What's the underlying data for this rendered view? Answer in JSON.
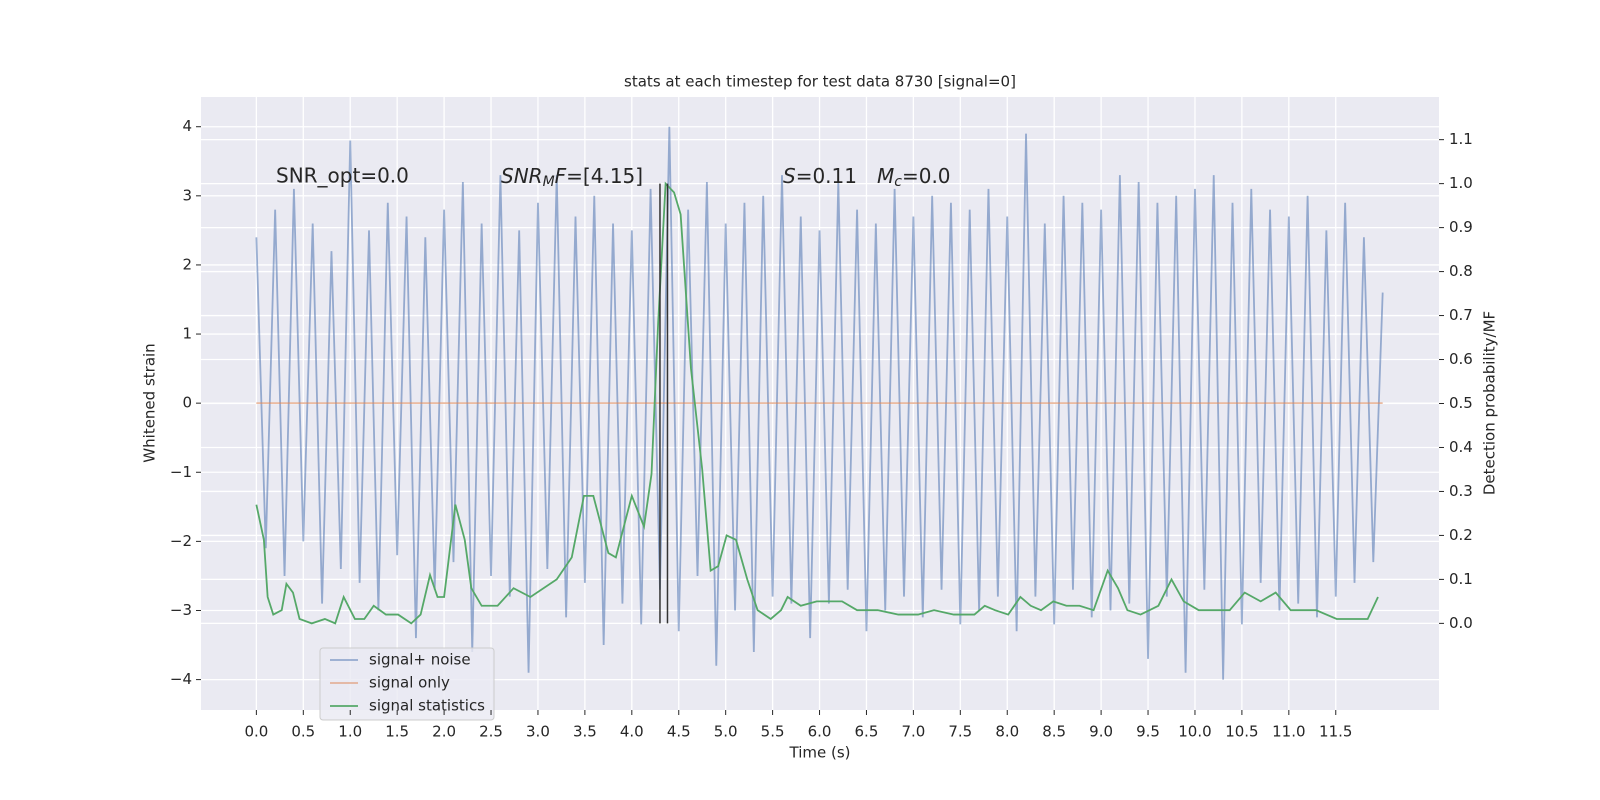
{
  "chart_data": {
    "type": "line",
    "title": "stats at each timestep for test data 8730 [signal=0]",
    "xlabel": "Time (s)",
    "ylabel": "Whitened strain",
    "y2label": "Detection probability/MF",
    "xlim": [
      -0.59,
      12.6
    ],
    "ylim": [
      -4.44,
      4.43
    ],
    "y2lim": [
      -0.197,
      1.197
    ],
    "xticks": [
      {
        "value": 0,
        "label": "0.0"
      },
      0.5,
      {
        "value": 1,
        "label": "1.0"
      },
      1.5,
      {
        "value": 2,
        "label": "2.0"
      },
      2.5,
      {
        "value": 3,
        "label": "3.0"
      },
      3.5,
      {
        "value": 4,
        "label": "4.0"
      },
      4.5,
      {
        "value": 5,
        "label": "5.0"
      },
      5.5,
      {
        "value": 6,
        "label": "6.0"
      },
      6.5,
      {
        "value": 7,
        "label": "7.0"
      },
      7.5,
      {
        "value": 8,
        "label": "8.0"
      },
      8.5,
      {
        "value": 9,
        "label": "9.0"
      },
      9.5,
      {
        "value": 10,
        "label": "10.0"
      },
      10.5,
      {
        "value": 11,
        "label": "11.0"
      },
      11.5
    ],
    "yticks": [
      {
        "value": -4,
        "label": "−4"
      },
      {
        "value": -3,
        "label": "−3"
      },
      {
        "value": -2,
        "label": "−2"
      },
      {
        "value": -1,
        "label": "−1"
      },
      0,
      1,
      2,
      3,
      4
    ],
    "y2ticks": [
      {
        "value": 0,
        "label": "0.0"
      },
      0.1,
      0.2,
      0.3,
      0.4,
      0.5,
      0.6,
      0.7,
      0.8,
      0.9,
      {
        "value": 1,
        "label": "1.0"
      },
      1.1
    ],
    "grid": true,
    "series": [
      {
        "name": "signal+ noise",
        "color": "#4c72b0",
        "axis": "y",
        "x": [
          0,
          0.1,
          0.2,
          0.3,
          0.4,
          0.5,
          0.6,
          0.7,
          0.8,
          0.9,
          1,
          1.1,
          1.2,
          1.3,
          1.4,
          1.5,
          1.6,
          1.7,
          1.8,
          1.9,
          2,
          2.1,
          2.2,
          2.3,
          2.4,
          2.5,
          2.6,
          2.7,
          2.8,
          2.9,
          3,
          3.1,
          3.2,
          3.3,
          3.4,
          3.5,
          3.6,
          3.7,
          3.8,
          3.9,
          4,
          4.1,
          4.2,
          4.3,
          4.4,
          4.5,
          4.6,
          4.7,
          4.8,
          4.9,
          5,
          5.1,
          5.2,
          5.3,
          5.4,
          5.5,
          5.6,
          5.7,
          5.8,
          5.9,
          6,
          6.1,
          6.2,
          6.3,
          6.4,
          6.5,
          6.6,
          6.7,
          6.8,
          6.9,
          7,
          7.1,
          7.2,
          7.3,
          7.4,
          7.5,
          7.6,
          7.7,
          7.8,
          7.9,
          8,
          8.1,
          8.2,
          8.3,
          8.4,
          8.5,
          8.6,
          8.7,
          8.8,
          8.9,
          9,
          9.1,
          9.2,
          9.3,
          9.4,
          9.5,
          9.6,
          9.7,
          9.8,
          9.9,
          10,
          10.1,
          10.2,
          10.3,
          10.4,
          10.5,
          10.6,
          10.7,
          10.8,
          10.9,
          11,
          11.1,
          11.2,
          11.3,
          11.4,
          11.5,
          11.6,
          11.7,
          11.8,
          11.9,
          12
        ],
        "values": [
          2.4,
          -2.1,
          2.8,
          -2.5,
          3.1,
          -2.0,
          2.6,
          -2.9,
          2.2,
          -2.4,
          3.8,
          -2.6,
          2.5,
          -3.0,
          2.9,
          -2.2,
          2.7,
          -3.4,
          2.4,
          -2.7,
          2.8,
          -2.3,
          3.2,
          -3.6,
          2.6,
          -2.5,
          3.3,
          -2.8,
          2.5,
          -3.9,
          2.9,
          -2.4,
          3.3,
          -3.1,
          2.7,
          -2.6,
          3.0,
          -3.5,
          2.6,
          -2.9,
          2.5,
          -3.2,
          3.1,
          -2.7,
          4.0,
          -3.3,
          2.8,
          -2.5,
          3.2,
          -3.8,
          2.6,
          -3.0,
          2.9,
          -3.6,
          3.0,
          -2.8,
          3.3,
          -2.9,
          2.7,
          -3.4,
          2.5,
          -2.9,
          3.2,
          -2.7,
          2.8,
          -3.3,
          2.6,
          -3.0,
          3.1,
          -2.8,
          2.7,
          -3.1,
          3.0,
          -2.7,
          2.9,
          -3.2,
          2.8,
          -3.0,
          3.1,
          -2.8,
          2.7,
          -3.3,
          3.9,
          -2.8,
          2.6,
          -3.2,
          3.0,
          -2.7,
          2.9,
          -3.1,
          2.8,
          -3.0,
          3.3,
          -2.9,
          3.2,
          -3.7,
          2.9,
          -2.8,
          3.0,
          -3.9,
          3.1,
          -2.7,
          3.3,
          -4.0,
          2.9,
          -3.2,
          3.1,
          -2.6,
          2.8,
          -3.0,
          2.7,
          -2.9,
          3.0,
          -3.1,
          2.5,
          -2.8,
          2.9,
          -2.6,
          2.4,
          -2.3,
          1.6
        ]
      },
      {
        "name": "signal only",
        "color": "#dd8452",
        "axis": "y",
        "x": [
          0,
          12
        ],
        "values": [
          0,
          0
        ]
      },
      {
        "name": "signal statistics",
        "color": "#55a868",
        "axis": "y2",
        "x": [
          0,
          0.08,
          0.12,
          0.18,
          0.27,
          0.32,
          0.39,
          0.46,
          0.59,
          0.73,
          0.84,
          0.93,
          1.05,
          1.15,
          1.25,
          1.38,
          1.51,
          1.65,
          1.75,
          1.85,
          1.93,
          2.0,
          2.12,
          2.22,
          2.29,
          2.4,
          2.57,
          2.74,
          2.92,
          3.2,
          3.36,
          3.49,
          3.59,
          3.75,
          3.83,
          4.0,
          4.13,
          4.21,
          4.28,
          4.36,
          4.45,
          4.52,
          4.63,
          4.75,
          4.84,
          4.92,
          5.01,
          5.11,
          5.23,
          5.34,
          5.48,
          5.59,
          5.66,
          5.8,
          5.97,
          6.13,
          6.24,
          6.4,
          6.62,
          6.84,
          7.05,
          7.22,
          7.43,
          7.65,
          7.76,
          7.87,
          8.01,
          8.14,
          8.25,
          8.36,
          8.49,
          8.63,
          8.77,
          8.92,
          9.07,
          9.18,
          9.28,
          9.42,
          9.61,
          9.75,
          9.88,
          10.04,
          10.26,
          10.37,
          10.53,
          10.7,
          10.86,
          11.02,
          11.29,
          11.51,
          11.84,
          11.95
        ],
        "values": [
          0.27,
          0.19,
          0.06,
          0.02,
          0.03,
          0.09,
          0.07,
          0.01,
          0.0,
          0.01,
          0.0,
          0.06,
          0.01,
          0.01,
          0.04,
          0.02,
          0.02,
          0.0,
          0.02,
          0.11,
          0.06,
          0.06,
          0.27,
          0.19,
          0.08,
          0.04,
          0.04,
          0.08,
          0.06,
          0.1,
          0.15,
          0.29,
          0.29,
          0.16,
          0.15,
          0.29,
          0.22,
          0.34,
          0.68,
          1.0,
          0.98,
          0.93,
          0.58,
          0.35,
          0.12,
          0.13,
          0.2,
          0.19,
          0.1,
          0.03,
          0.01,
          0.03,
          0.06,
          0.04,
          0.05,
          0.05,
          0.05,
          0.03,
          0.03,
          0.02,
          0.02,
          0.03,
          0.02,
          0.02,
          0.04,
          0.03,
          0.02,
          0.06,
          0.04,
          0.03,
          0.05,
          0.04,
          0.04,
          0.03,
          0.12,
          0.08,
          0.03,
          0.02,
          0.04,
          0.1,
          0.05,
          0.03,
          0.03,
          0.03,
          0.07,
          0.05,
          0.07,
          0.03,
          0.03,
          0.01,
          0.01,
          0.06
        ]
      }
    ],
    "vlines": {
      "x": [
        4.3,
        4.38
      ],
      "ymin": 0,
      "ymax": 1.0,
      "axis": "y2",
      "color": "#333333"
    },
    "annotations": [
      [
        "SNR_opt=0.0"
      ],
      [
        "SNR",
        "M",
        "F",
        "=[4.15]"
      ],
      [
        "S",
        "=0.11"
      ],
      [
        "M",
        "c",
        "=0.0"
      ]
    ]
  }
}
